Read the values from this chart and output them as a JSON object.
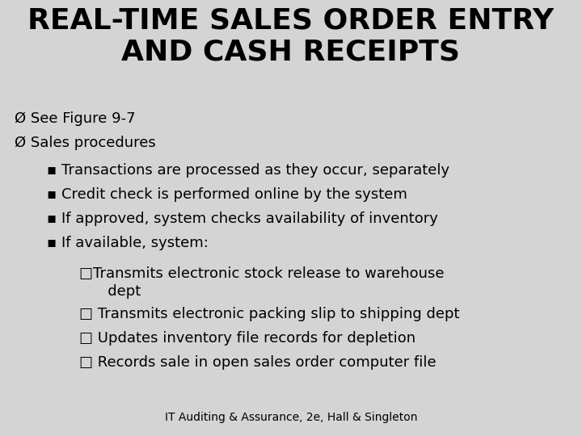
{
  "title_line1": "REAL-TIME SALES ORDER ENTRY",
  "title_line2": "AND CASH RECEIPTS",
  "background_color": "#d4d4d4",
  "text_color": "#000000",
  "title_fontsize": 26,
  "body_fontsize": 13,
  "footer_text": "IT Auditing & Assurance, 2e, Hall & Singleton",
  "footer_fontsize": 10,
  "bullet1_text": "See Figure 9-7",
  "bullet2_text": "Sales procedures",
  "sub_bullets": [
    "Transactions are processed as they occur, separately",
    "Credit check is performed online by the system",
    "If approved, system checks availability of inventory",
    "If available, system:"
  ],
  "sub_sub_bullet1a": "□Transmits electronic stock release to warehouse",
  "sub_sub_bullet1b": "   dept",
  "sub_sub_bullet2": "□ Transmits electronic packing slip to shipping dept",
  "sub_sub_bullet3": "□ Updates inventory file records for depletion",
  "sub_sub_bullet4": "□ Records sale in open sales order computer file"
}
